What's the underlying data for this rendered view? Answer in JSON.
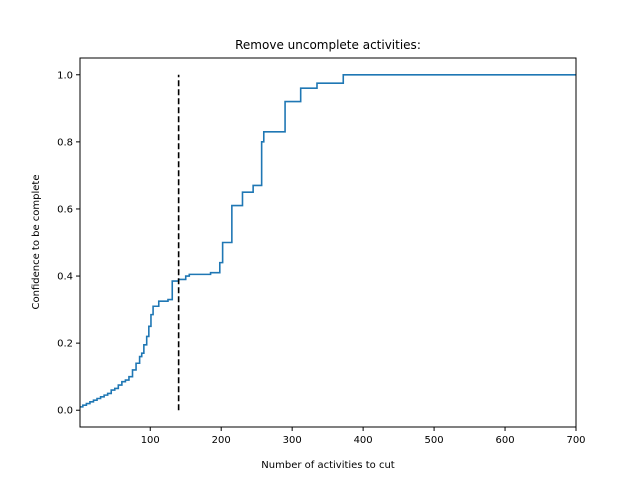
{
  "chart_data": {
    "type": "line",
    "title": "Remove uncomplete activities:",
    "xlabel": "Number of activities to cut",
    "ylabel": "Confidence to be complete",
    "xlim": [
      1,
      700
    ],
    "ylim": [
      -0.05,
      1.05
    ],
    "x_ticks": [
      100,
      200,
      300,
      400,
      500,
      600,
      700
    ],
    "y_ticks": [
      0.0,
      0.2,
      0.4,
      0.6,
      0.8,
      1.0
    ],
    "grid": false,
    "series": [
      {
        "color": "#1f77b4",
        "style": "steps",
        "points": [
          [
            1,
            0.01
          ],
          [
            5,
            0.015
          ],
          [
            10,
            0.02
          ],
          [
            15,
            0.025
          ],
          [
            20,
            0.03
          ],
          [
            25,
            0.035
          ],
          [
            30,
            0.04
          ],
          [
            35,
            0.045
          ],
          [
            40,
            0.05
          ],
          [
            45,
            0.06
          ],
          [
            50,
            0.065
          ],
          [
            55,
            0.075
          ],
          [
            60,
            0.085
          ],
          [
            65,
            0.09
          ],
          [
            70,
            0.1
          ],
          [
            75,
            0.12
          ],
          [
            80,
            0.14
          ],
          [
            85,
            0.16
          ],
          [
            88,
            0.17
          ],
          [
            91,
            0.195
          ],
          [
            95,
            0.22
          ],
          [
            98,
            0.25
          ],
          [
            101,
            0.285
          ],
          [
            104,
            0.31
          ],
          [
            112,
            0.325
          ],
          [
            125,
            0.33
          ],
          [
            131,
            0.385
          ],
          [
            140,
            0.39
          ],
          [
            150,
            0.4
          ],
          [
            155,
            0.405
          ],
          [
            185,
            0.41
          ],
          [
            198,
            0.44
          ],
          [
            202,
            0.5
          ],
          [
            215,
            0.61
          ],
          [
            230,
            0.65
          ],
          [
            245,
            0.67
          ],
          [
            257,
            0.8
          ],
          [
            260,
            0.83
          ],
          [
            290,
            0.92
          ],
          [
            312,
            0.96
          ],
          [
            335,
            0.975
          ],
          [
            372,
            1.0
          ],
          [
            700,
            1.0
          ]
        ]
      },
      {
        "color": "#000000",
        "style": "dashed",
        "points": [
          [
            140,
            0.0
          ],
          [
            140,
            1.0
          ]
        ]
      }
    ]
  }
}
